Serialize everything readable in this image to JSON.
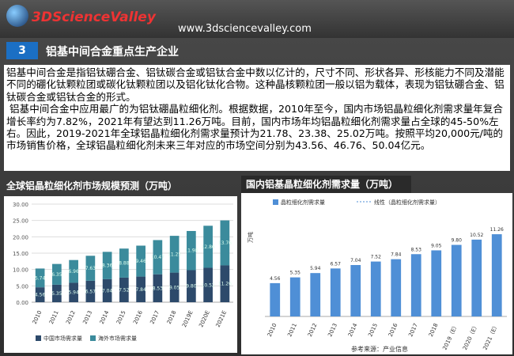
{
  "header": {
    "logo": "3DScienceValley",
    "url": "www.3dsciencevalley.com"
  },
  "section": {
    "number": "3",
    "title": "铝基中间合金重点生产企业"
  },
  "body": [
    "铝基中间合金是指铝钛硼合金、铝钛碳合金或铝钛合金中数以亿计的，尺寸不同、形状各异、形核能力不同及潜能不同的硼化钛颗粒团或碳化钛颗粒团以及铝化钛化合物。这种晶核颗粒团一般以铝为载体，表现为铝钛硼合金、铝钛碳合金或铝钛合金的形式。",
    "铝基中间合金中应用最广的为铝钛硼晶粒细化剂。根据数据，2010年至今，国内市场铝晶粒细化剂需求量年复合增长率约为7.82%，2021年有望达到11.26万吨。目前，国内市场年均铝晶粒细化剂需求量占全球的45-50%左右。因此，2019-2021年全球铝晶粒细化剂需求量预计为21.78、23.38、25.02万吨。按照平均20,000元/吨的市场销售价格，全球铝晶粒细化剂未来三年对应的市场空间分别为43.56、46.76、50.04亿元。"
  ],
  "chart_data": [
    {
      "type": "bar",
      "stacked": true,
      "title": "全球铝晶粒细化剂市场规模预测（万吨）",
      "categories": [
        "2010",
        "2011",
        "2012",
        "2013",
        "2014",
        "2015",
        "2016",
        "2017",
        "2018",
        "2019E",
        "2020E",
        "2021E"
      ],
      "series": [
        {
          "name": "中国市场需求量",
          "color": "#2d4a6b",
          "values": [
            4.56,
            5.35,
            5.94,
            6.57,
            7.04,
            7.52,
            7.84,
            8.53,
            9.05,
            9.8,
            10.52,
            11.26
          ],
          "value_labels": [
            "4.56",
            "5.35",
            "5.94",
            "6.57",
            "7.04",
            "7.52",
            "7.84",
            "8.53",
            "9.05",
            "9.80",
            "10.52",
            "11.26"
          ]
        },
        {
          "name": "海外市场需求量",
          "color": "#3b8b9c",
          "values": [
            5.74,
            6.35,
            6.96,
            7.63,
            8.36,
            8.88,
            9.46,
            10.47,
            11.25,
            11.98,
            12.86,
            13.76
          ]
        }
      ],
      "ylim": [
        0,
        30
      ],
      "yticks": [
        {
          "value": 0,
          "label": "0.00"
        },
        {
          "value": 5,
          "label": "5.00"
        },
        {
          "value": 10,
          "label": "10.00"
        },
        {
          "value": 15,
          "label": "15.00"
        },
        {
          "value": 20,
          "label": "20.00"
        },
        {
          "value": 25,
          "label": "25.00"
        },
        {
          "value": 30,
          "label": "30.00"
        }
      ],
      "grid": true
    },
    {
      "type": "bar",
      "title": "国内铝基晶粒细化剂需求量（万吨）",
      "y_label": "万吨",
      "categories": [
        "2010",
        "2011",
        "2012",
        "2013",
        "2014",
        "2015",
        "2016",
        "2017",
        "2018",
        "2019（E）",
        "2020（E）",
        "2021（E）"
      ],
      "series": [
        {
          "name": "晶粒细化剂需求量",
          "color": "#4f8fd6",
          "values": [
            4.56,
            5.35,
            5.94,
            6.57,
            7.04,
            7.52,
            7.84,
            8.53,
            9.05,
            9.8,
            10.52,
            11.26
          ],
          "value_labels": [
            "4.56",
            "5.35",
            "5.94",
            "6.57",
            "7.04",
            "7.52",
            "7.84",
            "8.53",
            "9.05",
            "9.80",
            "10.52",
            "11.26"
          ]
        }
      ],
      "trendline_label": "线性（晶粒细化剂需求量）",
      "ylim": [
        0,
        13
      ],
      "source": "参考来源：产业信息"
    }
  ]
}
